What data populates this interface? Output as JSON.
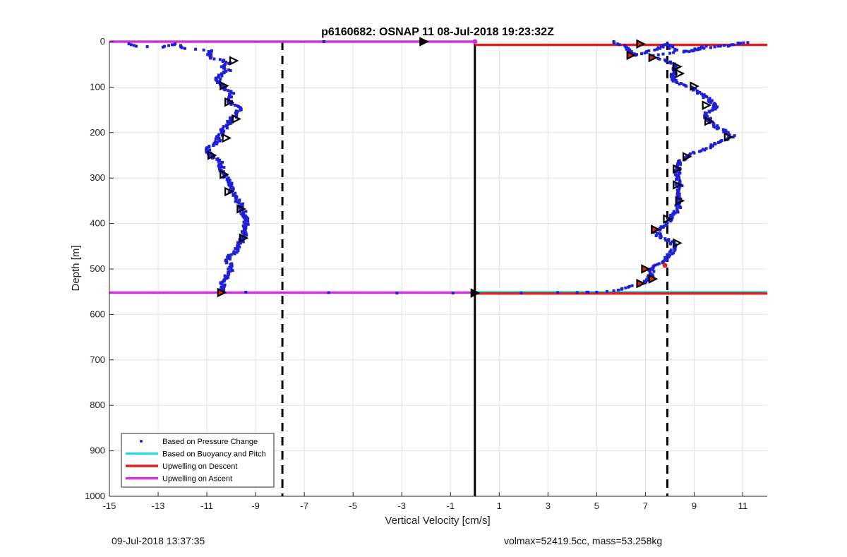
{
  "chart_data": {
    "type": "scatter",
    "title": "p6160682: OSNAP 11 08-Jul-2018 19:23:32Z",
    "xlabel": "Vertical Velocity [cm/s]",
    "ylabel": "Depth [m]",
    "xlim": [
      -15,
      12
    ],
    "ylim": [
      0,
      1000
    ],
    "y_reversed": true,
    "grid": true,
    "x_ticks": [
      -15,
      -13,
      -11,
      -9,
      -7,
      -5,
      -3,
      -1,
      1,
      3,
      5,
      7,
      9,
      11
    ],
    "y_ticks": [
      0,
      100,
      200,
      300,
      400,
      500,
      600,
      700,
      800,
      900,
      1000
    ],
    "legend_position": "bottom-left",
    "colors": {
      "pressure": "#1f1fd6",
      "buoyancy": "#2fd8e0",
      "descent": "#e02020",
      "ascent": "#d030d8",
      "reference": "#000000"
    },
    "series": [
      {
        "name": "Based on Pressure Change",
        "marker": "dot",
        "profiles": [
          {
            "points": [
              [
                -14.2,
                5
              ],
              [
                -13.9,
                10
              ],
              [
                -12.8,
                12
              ],
              [
                -12.3,
                5
              ],
              [
                -11.9,
                15
              ],
              [
                -10.8,
                20
              ],
              [
                -10.9,
                30
              ],
              [
                -10.7,
                38
              ],
              [
                -10.3,
                42
              ],
              [
                -10.1,
                48
              ],
              [
                -10.4,
                55
              ],
              [
                -10.1,
                62
              ],
              [
                -10.4,
                72
              ],
              [
                -10.6,
                85
              ],
              [
                -10.3,
                100
              ],
              [
                -10.0,
                112
              ],
              [
                -10.1,
                125
              ],
              [
                -10.0,
                138
              ],
              [
                -9.6,
                148
              ],
              [
                -9.8,
                160
              ],
              [
                -10.0,
                172
              ],
              [
                -10.2,
                185
              ],
              [
                -10.4,
                200
              ],
              [
                -10.5,
                212
              ],
              [
                -10.6,
                225
              ],
              [
                -11.0,
                235
              ],
              [
                -10.8,
                250
              ],
              [
                -10.5,
                262
              ],
              [
                -10.4,
                275
              ],
              [
                -10.3,
                292
              ],
              [
                -10.1,
                310
              ],
              [
                -10.0,
                330
              ],
              [
                -9.8,
                345
              ],
              [
                -9.6,
                360
              ],
              [
                -9.5,
                375
              ],
              [
                -9.4,
                392
              ],
              [
                -9.4,
                410
              ],
              [
                -9.5,
                432
              ],
              [
                -9.7,
                450
              ],
              [
                -9.9,
                465
              ],
              [
                -10.2,
                480
              ],
              [
                -10.0,
                495
              ],
              [
                -10.1,
                510
              ],
              [
                -10.3,
                525
              ],
              [
                -10.4,
                540
              ],
              [
                -10.4,
                552
              ]
            ]
          },
          {
            "points": [
              [
                5.7,
                0
              ],
              [
                6.3,
                15
              ],
              [
                6.6,
                30
              ],
              [
                7.6,
                15
              ],
              [
                7.9,
                5
              ],
              [
                8.2,
                20
              ],
              [
                8.8,
                22
              ],
              [
                9.5,
                10
              ],
              [
                10.4,
                10
              ],
              [
                10.8,
                3
              ],
              [
                11.2,
                2
              ],
              [
                7.2,
                32
              ],
              [
                7.8,
                40
              ],
              [
                8.2,
                52
              ],
              [
                8.2,
                65
              ],
              [
                8.1,
                80
              ],
              [
                8.3,
                90
              ],
              [
                8.9,
                100
              ],
              [
                9.3,
                115
              ],
              [
                9.6,
                128
              ],
              [
                9.9,
                145
              ],
              [
                9.5,
                158
              ],
              [
                9.6,
                175
              ],
              [
                10.0,
                190
              ],
              [
                10.4,
                200
              ],
              [
                10.6,
                210
              ],
              [
                10.0,
                222
              ],
              [
                9.5,
                235
              ],
              [
                9.0,
                245
              ],
              [
                8.6,
                255
              ],
              [
                8.4,
                265
              ],
              [
                8.3,
                280
              ],
              [
                8.3,
                300
              ],
              [
                8.4,
                320
              ],
              [
                8.4,
                335
              ],
              [
                8.4,
                352
              ],
              [
                8.3,
                370
              ],
              [
                8.1,
                385
              ],
              [
                7.9,
                398
              ],
              [
                7.6,
                410
              ],
              [
                7.4,
                418
              ],
              [
                7.6,
                430
              ],
              [
                8.1,
                440
              ],
              [
                8.2,
                455
              ],
              [
                8.0,
                470
              ],
              [
                7.7,
                485
              ],
              [
                7.3,
                498
              ],
              [
                7.2,
                510
              ],
              [
                7.2,
                522
              ],
              [
                6.9,
                532
              ],
              [
                6.3,
                540
              ],
              [
                5.7,
                548
              ],
              [
                5.0,
                551
              ],
              [
                4.2,
                552
              ]
            ]
          },
          {
            "points": [
              [
                -6.2,
                0
              ],
              [
                -9.4,
                551
              ],
              [
                -6.0,
                552
              ],
              [
                -3.2,
                553
              ],
              [
                -0.9,
                553
              ],
              [
                0.0,
                553
              ],
              [
                1.9,
                553
              ],
              [
                3.4,
                552
              ],
              [
                4.6,
                551
              ]
            ]
          }
        ]
      },
      {
        "name": "Based on Buoyancy and Pitch",
        "style": "line",
        "segments": [
          {
            "x": [
              0,
              12
            ],
            "y": [
              551,
              551
            ]
          }
        ]
      },
      {
        "name": "Upwelling on Descent",
        "style": "line",
        "segments": [
          {
            "x": [
              0,
              12
            ],
            "y": [
              7,
              7
            ]
          },
          {
            "x": [
              0,
              12
            ],
            "y": [
              554,
              554
            ]
          }
        ]
      },
      {
        "name": "Upwelling on Ascent",
        "style": "line",
        "segments": [
          {
            "x": [
              -15,
              0
            ],
            "y": [
              0,
              0
            ]
          },
          {
            "x": [
              -15,
              0
            ],
            "y": [
              552,
              552
            ]
          }
        ]
      }
    ],
    "triangle_markers": [
      {
        "x": -2.1,
        "y": 0,
        "fill": "black"
      },
      {
        "x": -9.9,
        "y": 42,
        "fill": "none"
      },
      {
        "x": -10.3,
        "y": 97,
        "fill": "none"
      },
      {
        "x": -10.1,
        "y": 133,
        "fill": "none"
      },
      {
        "x": -9.8,
        "y": 170,
        "fill": "none"
      },
      {
        "x": -10.2,
        "y": 212,
        "fill": "none"
      },
      {
        "x": -10.8,
        "y": 250,
        "fill": "none"
      },
      {
        "x": -10.3,
        "y": 292,
        "fill": "none"
      },
      {
        "x": -10.1,
        "y": 330,
        "fill": "none"
      },
      {
        "x": -9.6,
        "y": 368,
        "fill": "none"
      },
      {
        "x": -9.5,
        "y": 432,
        "fill": "none"
      },
      {
        "x": -10.4,
        "y": 552,
        "fill": "red"
      },
      {
        "x": 6.8,
        "y": 5,
        "fill": "red"
      },
      {
        "x": 6.4,
        "y": 30,
        "fill": "red"
      },
      {
        "x": 7.3,
        "y": 35,
        "fill": "red"
      },
      {
        "x": 8.3,
        "y": 55,
        "fill": "none"
      },
      {
        "x": 8.4,
        "y": 70,
        "fill": "none"
      },
      {
        "x": 9.0,
        "y": 98,
        "fill": "none"
      },
      {
        "x": 9.5,
        "y": 140,
        "fill": "none"
      },
      {
        "x": 9.6,
        "y": 175,
        "fill": "none"
      },
      {
        "x": 10.4,
        "y": 210,
        "fill": "none"
      },
      {
        "x": 8.7,
        "y": 253,
        "fill": "none"
      },
      {
        "x": 8.3,
        "y": 280,
        "fill": "none"
      },
      {
        "x": 8.3,
        "y": 315,
        "fill": "none"
      },
      {
        "x": 8.4,
        "y": 350,
        "fill": "none"
      },
      {
        "x": 7.9,
        "y": 390,
        "fill": "none"
      },
      {
        "x": 7.4,
        "y": 413,
        "fill": "red"
      },
      {
        "x": 8.3,
        "y": 443,
        "fill": "none"
      },
      {
        "x": 7.0,
        "y": 500,
        "fill": "red"
      },
      {
        "x": 7.3,
        "y": 522,
        "fill": "red"
      },
      {
        "x": 6.8,
        "y": 532,
        "fill": "red"
      },
      {
        "x": 0.0,
        "y": 553,
        "fill": "black"
      }
    ],
    "extra_dots": [
      {
        "x": 7.8,
        "y": 492,
        "color": "red"
      },
      {
        "x": 0.0,
        "y": 0,
        "color": "magenta"
      }
    ],
    "reference_lines": {
      "solid_x": 0.0,
      "dashed_x": [
        -7.9,
        7.9
      ]
    }
  },
  "footer": {
    "left": "09-Jul-2018 13:37:35",
    "right": "volmax=52419.5cc, mass=53.258kg"
  }
}
